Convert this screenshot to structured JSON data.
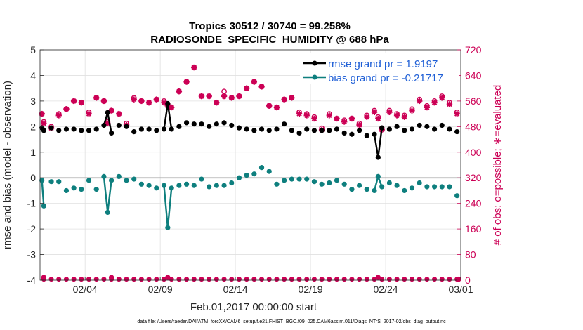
{
  "colors": {
    "rmse": "#000000",
    "bias": "#0e7f7e",
    "obs": "#cc0055",
    "legend_text": "#1f5fd6",
    "zero_line": "#b0b0b0",
    "grid": "#e0e0e0"
  },
  "chart_data": {
    "type": "line",
    "title": "Tropics 30512 / 30740 = 99.258%",
    "subtitle": "RADIOSONDE_SPECIFIC_HUMIDITY @ 688 hPa",
    "xlabel": "Feb.01,2017 00:00:00 start",
    "ylabel": "rmse and bias (model - observation)",
    "y2label": "# of obs: o=possible; ∗=evaluated",
    "footer": "data file: /Users/raeder/DAI/ATM_forcXX/CAM6_setup/f.e21.FHIST_BGC.f09_025.CAM6assim.011/Diags_NTrS_2017-02/obs_diag_output.nc",
    "xlim": [
      0,
      28
    ],
    "ylim": [
      -4,
      5
    ],
    "y2lim": [
      0,
      720
    ],
    "x_ticks": [
      3,
      8,
      13,
      18,
      23,
      28
    ],
    "x_tick_labels": [
      "02/04",
      "02/09",
      "02/14",
      "02/19",
      "02/24",
      "03/01"
    ],
    "y_ticks": [
      -4,
      -3,
      -2,
      -1,
      0,
      1,
      2,
      3,
      4,
      5
    ],
    "y_tick_labels": [
      "-4",
      "-3",
      "-2",
      "-1",
      "0",
      "1",
      "2",
      "3",
      "4",
      "5"
    ],
    "y2_ticks": [
      0,
      80,
      160,
      240,
      320,
      400,
      480,
      560,
      640,
      720
    ],
    "y2_tick_labels": [
      "0",
      "80",
      "160",
      "240",
      "320",
      "400",
      "480",
      "560",
      "640",
      "720"
    ],
    "legend": {
      "position": "top-right",
      "entries": [
        "rmse grand pr = 1.9197",
        "bias grand pr = -0.21717"
      ]
    },
    "time_x": [
      0.125,
      0.25,
      0.75,
      1.25,
      1.75,
      2.25,
      2.75,
      3.25,
      3.75,
      4.25,
      4.5,
      4.75,
      5.25,
      5.75,
      6.25,
      6.75,
      7.25,
      7.75,
      8.25,
      8.5,
      8.75,
      9.25,
      9.75,
      10.25,
      10.75,
      11.25,
      11.75,
      12.25,
      12.75,
      13.25,
      13.75,
      14.25,
      14.75,
      15.25,
      15.75,
      16.25,
      16.75,
      17.25,
      17.75,
      18.25,
      18.75,
      19.25,
      19.75,
      20.25,
      20.75,
      21.25,
      21.75,
      22.25,
      22.5,
      22.75,
      23.25,
      23.75,
      24.25,
      24.75,
      25.25,
      25.75,
      26.25,
      26.75,
      27.25,
      27.75
    ],
    "series": [
      {
        "name": "rmse",
        "axis": "left",
        "values": [
          1.95,
          1.85,
          1.95,
          1.85,
          1.9,
          1.9,
          1.85,
          1.85,
          1.9,
          2.05,
          2.55,
          1.75,
          2.05,
          2.0,
          1.8,
          1.9,
          1.9,
          1.85,
          1.9,
          2.9,
          1.9,
          2.0,
          2.15,
          2.1,
          2.1,
          2.0,
          2.1,
          2.15,
          2.05,
          1.95,
          1.9,
          1.85,
          1.9,
          1.85,
          1.9,
          2.1,
          1.85,
          1.75,
          1.9,
          1.85,
          1.85,
          1.85,
          1.9,
          1.75,
          1.7,
          1.85,
          1.65,
          1.7,
          0.8,
          1.95,
          1.9,
          2.0,
          1.85,
          1.9,
          2.05,
          2.0,
          1.9,
          2.05,
          1.9,
          1.8
        ]
      },
      {
        "name": "bias",
        "axis": "left",
        "values": [
          -0.1,
          -1.1,
          -0.15,
          -0.15,
          -0.5,
          -0.4,
          -0.45,
          -0.1,
          -0.45,
          0.05,
          -1.35,
          -0.1,
          0.05,
          -0.1,
          -0.05,
          -0.25,
          -0.3,
          -0.4,
          -0.3,
          -1.95,
          -0.4,
          -0.3,
          -0.25,
          -0.3,
          -0.05,
          -0.35,
          -0.3,
          -0.3,
          -0.2,
          0.0,
          0.1,
          0.15,
          0.4,
          0.25,
          -0.25,
          -0.1,
          -0.05,
          -0.05,
          -0.05,
          -0.15,
          -0.25,
          -0.2,
          -0.1,
          -0.25,
          -0.45,
          -0.3,
          -0.45,
          -0.5,
          0.05,
          -0.35,
          -0.2,
          -0.3,
          -0.5,
          -0.4,
          -0.2,
          -0.35,
          -0.35,
          -0.35,
          -0.35,
          -0.7
        ]
      },
      {
        "name": "obs possible",
        "axis": "right",
        "marker": "o",
        "values": [
          520,
          495,
          480,
          520,
          535,
          560,
          555,
          525,
          570,
          560,
          495,
          530,
          520,
          490,
          570,
          560,
          555,
          565,
          560,
          550,
          540,
          590,
          620,
          665,
          575,
          575,
          555,
          590,
          570,
          575,
          600,
          620,
          605,
          545,
          540,
          565,
          570,
          525,
          520,
          510,
          475,
          520,
          505,
          500,
          505,
          490,
          515,
          530,
          510,
          475,
          530,
          520,
          515,
          535,
          565,
          545,
          560,
          575,
          555,
          525
        ]
      },
      {
        "name": "obs evaluated",
        "axis": "right",
        "marker": "*",
        "values": [
          520,
          490,
          475,
          515,
          535,
          560,
          555,
          520,
          570,
          560,
          490,
          530,
          520,
          485,
          565,
          560,
          555,
          565,
          555,
          545,
          540,
          590,
          620,
          665,
          575,
          575,
          555,
          575,
          570,
          575,
          600,
          620,
          605,
          545,
          540,
          565,
          570,
          520,
          515,
          505,
          470,
          515,
          505,
          495,
          505,
          485,
          510,
          525,
          505,
          470,
          525,
          515,
          510,
          530,
          560,
          540,
          555,
          570,
          550,
          520
        ]
      }
    ],
    "obs_bottom": {
      "axis": "right",
      "x": [
        0.25,
        4.75,
        8.5,
        22.5
      ],
      "values": [
        3,
        3,
        3,
        3
      ]
    }
  }
}
